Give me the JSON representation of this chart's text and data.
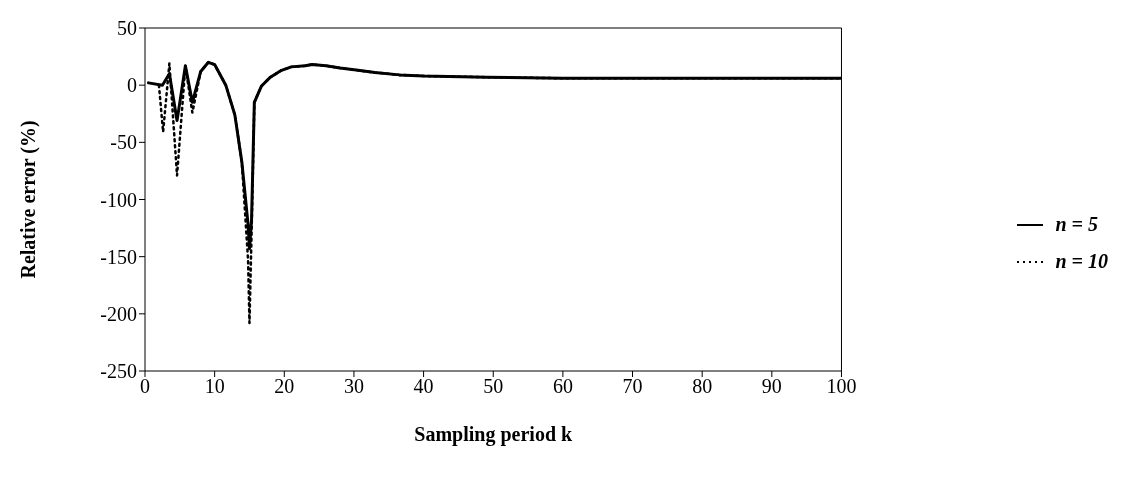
{
  "chart_data": {
    "type": "line",
    "xlabel": "Sampling period k",
    "ylabel": "Relative error (%)",
    "xlim": [
      0,
      100
    ],
    "xticks": [
      0,
      10,
      20,
      30,
      40,
      50,
      60,
      70,
      80,
      90,
      100
    ],
    "ylim": [
      -250,
      50
    ],
    "yticks": [
      -250,
      -200,
      -150,
      -100,
      -50,
      0,
      50
    ],
    "legend": "right",
    "marker": "none",
    "series": [
      {
        "name": "n = 5",
        "color": "#000000",
        "line_style": "solid",
        "x": [
          0.5,
          2.5,
          3.5,
          4.6,
          5.8,
          6.8,
          8,
          9.1,
          10,
          11.6,
          12.9,
          13.9,
          14.8,
          15,
          15.3,
          15.7,
          16.7,
          18,
          19.6,
          21,
          23,
          24,
          26,
          28,
          30.6,
          33,
          36.5,
          40,
          49,
          60,
          70,
          80,
          90,
          100
        ],
        "values": [
          2,
          0,
          10,
          -31,
          17,
          -15,
          12,
          20,
          18,
          0,
          -26,
          -67,
          -122,
          -143,
          -118,
          -15,
          -1,
          7,
          13,
          16,
          17,
          18,
          17,
          15,
          13,
          11,
          9,
          8,
          7,
          6,
          6,
          6,
          6,
          6
        ]
      },
      {
        "name": "n = 10",
        "color": "#000000",
        "line_style": "dotted",
        "x": [
          2,
          2.6,
          3.5,
          4.6,
          5.8,
          6.8,
          8,
          9.1,
          10,
          11.6,
          12.9,
          13.9,
          14.8,
          15,
          15.3,
          15.7,
          16.7,
          18,
          19.6,
          21,
          23,
          24,
          26,
          28,
          30.6,
          33,
          36.5,
          40,
          49,
          60,
          70,
          80,
          90,
          100
        ],
        "values": [
          0,
          -41,
          19,
          -79,
          17,
          -24,
          12,
          20,
          18,
          0,
          -26,
          -67,
          -153,
          -208,
          -130,
          -15,
          -1,
          7,
          13,
          16,
          17,
          18,
          17,
          15,
          13,
          11,
          9,
          8,
          7,
          6,
          6,
          6,
          6,
          6
        ]
      }
    ]
  }
}
